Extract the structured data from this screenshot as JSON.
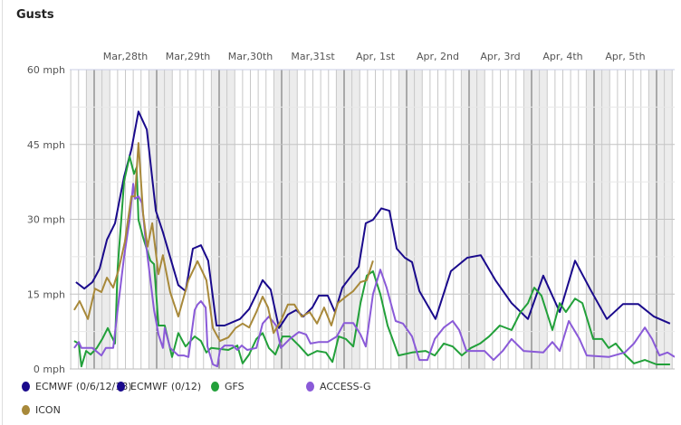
{
  "title": "Gusts",
  "chart_data": {
    "type": "line",
    "title": "Gusts",
    "xlabel": "",
    "ylabel": "",
    "x_unit": "hours since Mar 28th 00:00",
    "xlim": [
      -9.4,
      223
    ],
    "ylim": [
      0,
      60
    ],
    "y_ticks": [
      0,
      15,
      30,
      45,
      60
    ],
    "y_tick_labels": [
      "0 mph",
      "15 mph",
      "30 mph",
      "45 mph",
      "60 mph"
    ],
    "x_tick_labels": [
      "Mar,28th",
      "Mar,29th",
      "Mar,30th",
      "Mar,31st",
      "Apr, 1st",
      "Apr, 2nd",
      "Apr, 3rd",
      "Apr, 4th",
      "Apr, 5th"
    ],
    "grid": true,
    "legend_position": "bottom",
    "series": [
      {
        "name": "ECMWF (0/6/12/18)",
        "color": "#1a0a8c",
        "points": [
          [
            -7,
            17.4
          ],
          [
            -3.8,
            16.1
          ],
          [
            -0.7,
            17.4
          ],
          [
            2.1,
            20.1
          ],
          [
            4.9,
            25.9
          ],
          [
            8,
            29.2
          ],
          [
            11.5,
            38.6
          ],
          [
            14.3,
            44
          ],
          [
            17,
            51.6
          ],
          [
            20.2,
            48
          ],
          [
            23.7,
            31.7
          ],
          [
            26.4,
            27.4
          ],
          [
            32.3,
            16.8
          ],
          [
            35.1,
            15.6
          ],
          [
            37.9,
            24.1
          ],
          [
            41,
            24.8
          ],
          [
            43.8,
            21.7
          ],
          [
            47,
            8.7
          ],
          [
            50.1,
            8.7
          ],
          [
            56,
            10
          ],
          [
            59.5,
            12
          ],
          [
            62.3,
            15
          ],
          [
            64.7,
            17.8
          ],
          [
            67.8,
            15.9
          ],
          [
            71,
            8.2
          ],
          [
            74.4,
            10.9
          ],
          [
            77.6,
            11.8
          ],
          [
            80.3,
            10.5
          ],
          [
            83.8,
            12.3
          ],
          [
            86.3,
            14.7
          ],
          [
            89.7,
            14.7
          ],
          [
            92.5,
            11.4
          ],
          [
            95.3,
            16.3
          ],
          [
            98.8,
            18.7
          ],
          [
            101.6,
            20.5
          ],
          [
            104.3,
            29.2
          ],
          [
            107.1,
            29.9
          ],
          [
            110.3,
            32.2
          ],
          [
            113.4,
            31.7
          ],
          [
            116.2,
            24.1
          ],
          [
            119.3,
            22.3
          ],
          [
            122.1,
            21.4
          ],
          [
            124.9,
            15.6
          ],
          [
            131.1,
            10
          ],
          [
            137,
            19.6
          ],
          [
            143.3,
            22.3
          ],
          [
            148.5,
            22.8
          ],
          [
            154.1,
            17.8
          ],
          [
            160.3,
            13.2
          ],
          [
            166.6,
            10
          ],
          [
            172.5,
            18.7
          ],
          [
            178.8,
            11.4
          ],
          [
            184.7,
            21.7
          ],
          [
            190.6,
            15.9
          ],
          [
            196.9,
            10
          ],
          [
            203.1,
            13
          ],
          [
            209,
            13
          ],
          [
            215,
            10.5
          ],
          [
            221.2,
            9.1
          ]
        ]
      },
      {
        "name": "ECMWF (0/12)",
        "color": "#1a0a8c",
        "points": []
      },
      {
        "name": "GFS",
        "color": "#22a03a",
        "points": [
          [
            -7.7,
            5.6
          ],
          [
            -5.9,
            5.1
          ],
          [
            -4.9,
            0.5
          ],
          [
            -3.1,
            3.6
          ],
          [
            -1.4,
            2.9
          ],
          [
            1,
            4.2
          ],
          [
            3.1,
            6
          ],
          [
            5.2,
            8.2
          ],
          [
            8,
            5.1
          ],
          [
            9,
            20.1
          ],
          [
            11.5,
            37.7
          ],
          [
            13.6,
            42.6
          ],
          [
            15.3,
            39.1
          ],
          [
            16.3,
            40.4
          ],
          [
            17,
            29.9
          ],
          [
            18.8,
            26.3
          ],
          [
            21.6,
            21.7
          ],
          [
            23,
            21
          ],
          [
            24.7,
            8.7
          ],
          [
            27.1,
            8.7
          ],
          [
            29.9,
            2.4
          ],
          [
            32.3,
            7.2
          ],
          [
            35.1,
            4.5
          ],
          [
            38.6,
            6.5
          ],
          [
            41,
            5.6
          ],
          [
            43.1,
            3.3
          ],
          [
            44.9,
            4.2
          ],
          [
            51.5,
            3.8
          ],
          [
            55,
            4.7
          ],
          [
            57,
            1.1
          ],
          [
            59.5,
            2.9
          ],
          [
            62.3,
            6
          ],
          [
            64.7,
            7.2
          ],
          [
            67.1,
            4.2
          ],
          [
            69.6,
            2.9
          ],
          [
            72.3,
            6.5
          ],
          [
            75.1,
            6.5
          ],
          [
            78.6,
            4.7
          ],
          [
            82.1,
            2.7
          ],
          [
            85.6,
            3.6
          ],
          [
            89,
            3.3
          ],
          [
            91.5,
            1.4
          ],
          [
            93.9,
            6.5
          ],
          [
            96.7,
            6
          ],
          [
            99.5,
            4.5
          ],
          [
            102.3,
            13.2
          ],
          [
            104.7,
            18.7
          ],
          [
            107.1,
            19.6
          ],
          [
            109.9,
            15
          ],
          [
            112.7,
            8.7
          ],
          [
            116.9,
            2.7
          ],
          [
            122.1,
            3.3
          ],
          [
            127.3,
            3.6
          ],
          [
            130.8,
            2.7
          ],
          [
            134.3,
            5.1
          ],
          [
            137.7,
            4.5
          ],
          [
            141.2,
            2.7
          ],
          [
            144.7,
            4.2
          ],
          [
            148.2,
            5.1
          ],
          [
            151.7,
            6.5
          ],
          [
            155.8,
            8.7
          ],
          [
            160.3,
            7.8
          ],
          [
            163.8,
            11.4
          ],
          [
            166.6,
            13.2
          ],
          [
            169,
            16.3
          ],
          [
            171.8,
            14.7
          ],
          [
            176,
            7.8
          ],
          [
            178.8,
            13.2
          ],
          [
            181.2,
            11.4
          ],
          [
            184.7,
            14.1
          ],
          [
            187.5,
            13.2
          ],
          [
            191.7,
            6
          ],
          [
            195.1,
            6
          ],
          [
            197.6,
            4.2
          ],
          [
            200.3,
            5.1
          ],
          [
            203.8,
            2.9
          ],
          [
            207.3,
            1.1
          ],
          [
            211.5,
            1.8
          ],
          [
            216,
            0.9
          ],
          [
            221.2,
            0.9
          ]
        ]
      },
      {
        "name": "ACCESS-G",
        "color": "#8a5ad8",
        "points": [
          [
            -7.7,
            4.2
          ],
          [
            -5.9,
            5.4
          ],
          [
            -4.9,
            4.2
          ],
          [
            -0.7,
            4.2
          ],
          [
            2.8,
            2.7
          ],
          [
            4.5,
            4.2
          ],
          [
            7.3,
            4.2
          ],
          [
            9,
            11.8
          ],
          [
            11.5,
            22.6
          ],
          [
            13.6,
            29.9
          ],
          [
            15,
            37.1
          ],
          [
            15.7,
            34.1
          ],
          [
            17,
            34.6
          ],
          [
            18.4,
            33.2
          ],
          [
            19.8,
            25.5
          ],
          [
            21.2,
            19.6
          ],
          [
            23,
            11.8
          ],
          [
            24.7,
            6.9
          ],
          [
            26.4,
            4.2
          ],
          [
            27.1,
            8.2
          ],
          [
            29.2,
            4.2
          ],
          [
            32.3,
            2.7
          ],
          [
            34.4,
            2.7
          ],
          [
            36.2,
            2.4
          ],
          [
            38.6,
            11.8
          ],
          [
            39.7,
            12.9
          ],
          [
            41,
            13.6
          ],
          [
            42.8,
            12.3
          ],
          [
            43.5,
            4.5
          ],
          [
            45.6,
            0.9
          ],
          [
            47.3,
            0.5
          ],
          [
            48.3,
            3.8
          ],
          [
            50.1,
            4.7
          ],
          [
            53.2,
            4.7
          ],
          [
            55,
            3.8
          ],
          [
            56.7,
            4.7
          ],
          [
            58.8,
            3.8
          ],
          [
            62.3,
            4.2
          ],
          [
            64.7,
            9.1
          ],
          [
            67.1,
            10.5
          ],
          [
            69.9,
            8.7
          ],
          [
            71.7,
            4.2
          ],
          [
            75.1,
            6
          ],
          [
            78.6,
            7.4
          ],
          [
            81.4,
            6.9
          ],
          [
            83.1,
            5.1
          ],
          [
            86.3,
            5.4
          ],
          [
            89.7,
            5.4
          ],
          [
            93.2,
            6.5
          ],
          [
            96,
            9.2
          ],
          [
            99.5,
            9.2
          ],
          [
            102.3,
            6.9
          ],
          [
            104.3,
            4.5
          ],
          [
            107.1,
            15
          ],
          [
            109.9,
            19.9
          ],
          [
            112.3,
            16.3
          ],
          [
            115.8,
            9.6
          ],
          [
            118.6,
            9.1
          ],
          [
            122.1,
            6.5
          ],
          [
            124.9,
            1.8
          ],
          [
            128,
            1.8
          ],
          [
            130.8,
            6
          ],
          [
            134.3,
            8.3
          ],
          [
            137.7,
            9.6
          ],
          [
            140.2,
            7.8
          ],
          [
            143,
            3.6
          ],
          [
            149.9,
            3.6
          ],
          [
            153.4,
            1.8
          ],
          [
            156.9,
            3.6
          ],
          [
            160.3,
            6
          ],
          [
            164.9,
            3.6
          ],
          [
            172.5,
            3.3
          ],
          [
            176,
            5.4
          ],
          [
            178.8,
            3.6
          ],
          [
            182.3,
            9.6
          ],
          [
            186.4,
            6
          ],
          [
            189.2,
            2.7
          ],
          [
            197.6,
            2.4
          ],
          [
            203.8,
            3.3
          ],
          [
            207.3,
            5.1
          ],
          [
            211.5,
            8.3
          ],
          [
            214.3,
            6
          ],
          [
            217.1,
            2.7
          ],
          [
            220.2,
            3.3
          ],
          [
            223,
            2.4
          ]
        ]
      },
      {
        "name": "ICON",
        "color": "#a8893a",
        "points": [
          [
            -7.7,
            11.8
          ],
          [
            -5.6,
            13.6
          ],
          [
            -2.4,
            10
          ],
          [
            0.3,
            16.1
          ],
          [
            2.8,
            15.4
          ],
          [
            4.9,
            18.3
          ],
          [
            7.3,
            16.3
          ],
          [
            9.4,
            19.9
          ],
          [
            11.8,
            25.5
          ],
          [
            14.3,
            34.6
          ],
          [
            15.7,
            34.6
          ],
          [
            17,
            45.3
          ],
          [
            18.8,
            31
          ],
          [
            20.5,
            24.5
          ],
          [
            22.3,
            29.2
          ],
          [
            24.7,
            19
          ],
          [
            26.4,
            22.8
          ],
          [
            29.2,
            15.4
          ],
          [
            32.3,
            10.5
          ],
          [
            36.2,
            17.8
          ],
          [
            39.7,
            21.6
          ],
          [
            43.1,
            17.8
          ],
          [
            45.6,
            8.2
          ],
          [
            48.3,
            5.6
          ],
          [
            51.5,
            6.3
          ],
          [
            54.3,
            8.2
          ],
          [
            57,
            9.1
          ],
          [
            59.5,
            8.3
          ],
          [
            62.3,
            11.4
          ],
          [
            64.7,
            14.5
          ],
          [
            66.8,
            12.3
          ],
          [
            68.9,
            7.2
          ],
          [
            71.7,
            9.6
          ],
          [
            74.4,
            12.9
          ],
          [
            76.9,
            12.9
          ],
          [
            79.7,
            10.5
          ],
          [
            82.8,
            11.4
          ],
          [
            85.6,
            9.1
          ],
          [
            88.3,
            12.3
          ],
          [
            91.1,
            8.7
          ],
          [
            93.6,
            13.2
          ],
          [
            96.7,
            14.5
          ],
          [
            99.5,
            15.6
          ],
          [
            102.3,
            17.4
          ],
          [
            104.7,
            17.8
          ],
          [
            107.1,
            21.7
          ]
        ]
      }
    ]
  }
}
